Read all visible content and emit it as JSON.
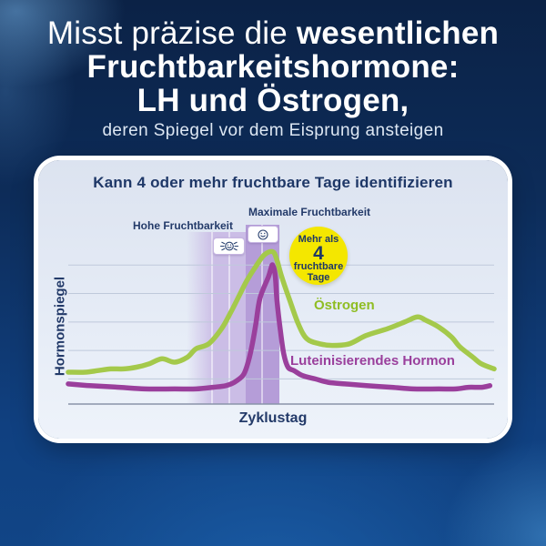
{
  "header": {
    "line1_regular": "Misst präzise die ",
    "line1_bold": "wesentlichen",
    "line2": "Fruchtbarkeitshormone:",
    "line3": "LH und Östrogen,",
    "subtitle": "deren Spiegel vor dem Eisprung ansteigen"
  },
  "card": {
    "title": "Kann 4 oder mehr fruchtbare Tage identifizieren",
    "labels": {
      "high_fertility": "Hohe Fruchtbarkeit",
      "peak_fertility": "Maximale Fruchtbarkeit",
      "estrogen": "Östrogen",
      "lh": "Luteinisierendes Hormon",
      "y_axis": "Hormonspiegel",
      "x_axis": "Zyklustag"
    },
    "badge": {
      "line1": "Mehr als",
      "number": "4",
      "line2": "fruchtbare",
      "line3": "Tage"
    },
    "icons": {
      "high_fertility_icon": "flashing-smiley",
      "peak_fertility_icon": "static-smiley"
    }
  },
  "colors": {
    "background_top": "#0b2246",
    "background_bottom": "#114586",
    "headline_text": "#ffffff",
    "card_bg": "#e3eaf5",
    "card_border": "#ffffff",
    "navy_text": "#1e3767",
    "estrogen_green": "#a4c94b",
    "estrogen_label_green": "#8fbd23",
    "lh_purple": "#9a3f9c",
    "band_light_purple": "#cbbde6",
    "band_dark_purple": "#b59dd8",
    "badge_yellow": "#f4e700",
    "gridline": "#bfc9db",
    "axis": "#8a94a9"
  },
  "chart_data": {
    "type": "line",
    "title": "Kann 4 oder mehr fruchtbare Tage identifizieren",
    "xlabel": "Zyklustag",
    "ylabel": "Hormonspiegel",
    "axis_tick_labels": "none",
    "grid": "horizontal",
    "legend_position": "labels-inline-next-to-lines",
    "x_range_pct": [
      0,
      100
    ],
    "y_level_range": [
      0,
      110
    ],
    "gridline_levels": [
      83,
      66,
      49,
      32,
      15
    ],
    "bands": [
      {
        "label": "Hohe Fruchtbarkeit",
        "style": "light",
        "fade_left": true,
        "x_from_pct": 27.8,
        "x_to_pct": 41.7
      },
      {
        "label": "Maximale Fruchtbarkeit",
        "style": "dark",
        "fade_left": false,
        "x_from_pct": 41.7,
        "x_to_pct": 49.6
      }
    ],
    "day_separators_pct": [
      33.8,
      37.8,
      45.5
    ],
    "series": [
      {
        "name": "Östrogen",
        "color": "#a4c94b",
        "points": [
          [
            0,
            19
          ],
          [
            4,
            19
          ],
          [
            7,
            20
          ],
          [
            10,
            21
          ],
          [
            13,
            21
          ],
          [
            16,
            22
          ],
          [
            19,
            24
          ],
          [
            22,
            27
          ],
          [
            25,
            25
          ],
          [
            28,
            28
          ],
          [
            30,
            33
          ],
          [
            33,
            36
          ],
          [
            36,
            45
          ],
          [
            38,
            54
          ],
          [
            40,
            64
          ],
          [
            42,
            74
          ],
          [
            44,
            82
          ],
          [
            46,
            89
          ],
          [
            48,
            91
          ],
          [
            49,
            86
          ],
          [
            50,
            77
          ],
          [
            52,
            62
          ],
          [
            54,
            48
          ],
          [
            56,
            39
          ],
          [
            59,
            36
          ],
          [
            62,
            35
          ],
          [
            66,
            36
          ],
          [
            70,
            41
          ],
          [
            75,
            45
          ],
          [
            79,
            49
          ],
          [
            82,
            52
          ],
          [
            84,
            50
          ],
          [
            87,
            46
          ],
          [
            90,
            40
          ],
          [
            92,
            34
          ],
          [
            95,
            28
          ],
          [
            97,
            24
          ],
          [
            100,
            21
          ]
        ]
      },
      {
        "name": "Luteinisierendes Hormon",
        "color": "#9a3f9c",
        "points": [
          [
            0,
            12
          ],
          [
            5,
            11
          ],
          [
            12,
            10
          ],
          [
            18,
            9
          ],
          [
            25,
            9
          ],
          [
            30,
            9
          ],
          [
            34,
            10
          ],
          [
            37,
            11
          ],
          [
            39,
            13
          ],
          [
            41,
            17
          ],
          [
            42,
            23
          ],
          [
            43,
            33
          ],
          [
            44,
            47
          ],
          [
            45,
            63
          ],
          [
            47,
            76
          ],
          [
            47.6,
            81
          ],
          [
            48,
            83
          ],
          [
            48.6,
            77
          ],
          [
            49,
            62
          ],
          [
            49.8,
            44
          ],
          [
            50.6,
            30
          ],
          [
            51.6,
            22
          ],
          [
            53,
            20
          ],
          [
            55,
            17
          ],
          [
            58,
            15
          ],
          [
            61,
            13
          ],
          [
            65,
            12
          ],
          [
            70,
            11
          ],
          [
            76,
            10
          ],
          [
            81,
            9
          ],
          [
            87,
            9
          ],
          [
            91,
            9
          ],
          [
            94,
            10
          ],
          [
            97,
            10
          ],
          [
            99,
            11
          ]
        ]
      }
    ]
  }
}
